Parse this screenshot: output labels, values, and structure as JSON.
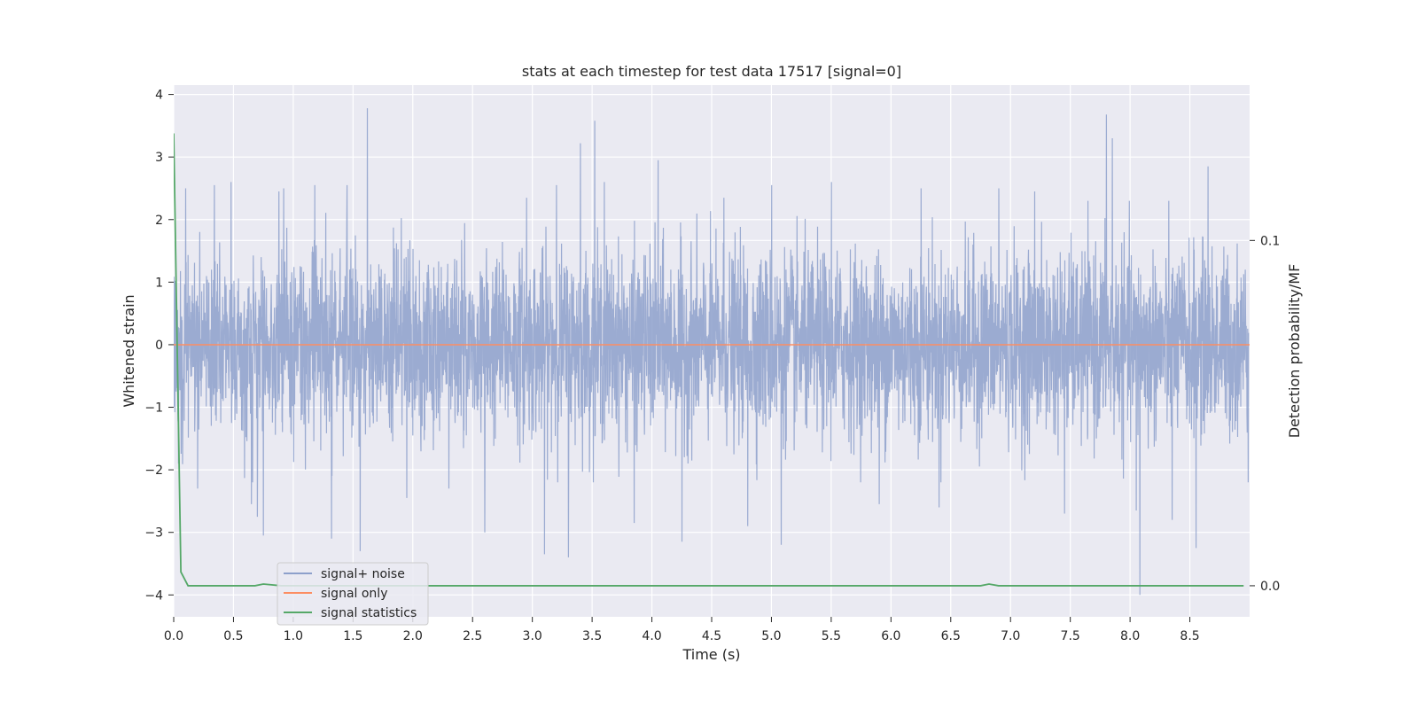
{
  "chart_data": {
    "type": "line",
    "title": "stats at each timestep for test data 17517 [signal=0]",
    "xlabel": "Time (s)",
    "ylabel": "Whitened strain",
    "ylabel_right": "Detection probability/MF",
    "xlim": [
      0.0,
      9.0
    ],
    "ylim": [
      -4.35,
      4.15
    ],
    "ylim_right": [
      -0.009,
      0.145
    ],
    "x_ticks": [
      "0.0",
      "0.5",
      "1.0",
      "1.5",
      "2.0",
      "2.5",
      "3.0",
      "3.5",
      "4.0",
      "4.5",
      "5.0",
      "5.5",
      "6.0",
      "6.5",
      "7.0",
      "7.5",
      "8.0",
      "8.5"
    ],
    "x_tick_values": [
      0.0,
      0.5,
      1.0,
      1.5,
      2.0,
      2.5,
      3.0,
      3.5,
      4.0,
      4.5,
      5.0,
      5.5,
      6.0,
      6.5,
      7.0,
      7.5,
      8.0,
      8.5
    ],
    "y_ticks": [
      "−4",
      "−3",
      "−2",
      "−1",
      "0",
      "1",
      "2",
      "3",
      "4"
    ],
    "y_tick_values": [
      -4,
      -3,
      -2,
      -1,
      0,
      1,
      2,
      3,
      4
    ],
    "y_ticks_right": [
      "0.0",
      "0.1"
    ],
    "y_tick_values_right": [
      0.0,
      0.1
    ],
    "grid": true,
    "legend_position": "lower-left",
    "series": [
      {
        "name": "signal+ noise",
        "color": "#8da0cb",
        "axis": "left",
        "sampling_interval": 0.002,
        "extrema": [
          {
            "x": 0.04,
            "y": -1.9
          },
          {
            "x": 0.1,
            "y": 2.5
          },
          {
            "x": 0.2,
            "y": -2.3
          },
          {
            "x": 0.34,
            "y": 2.55
          },
          {
            "x": 0.48,
            "y": 2.6
          },
          {
            "x": 0.65,
            "y": -2.55
          },
          {
            "x": 0.7,
            "y": -2.75
          },
          {
            "x": 0.75,
            "y": -3.05
          },
          {
            "x": 0.88,
            "y": 2.45
          },
          {
            "x": 0.92,
            "y": 2.5
          },
          {
            "x": 1.18,
            "y": 2.55
          },
          {
            "x": 1.32,
            "y": -3.1
          },
          {
            "x": 1.45,
            "y": 2.55
          },
          {
            "x": 1.56,
            "y": -3.3
          },
          {
            "x": 1.62,
            "y": 3.78
          },
          {
            "x": 1.95,
            "y": -2.45
          },
          {
            "x": 2.3,
            "y": -2.3
          },
          {
            "x": 2.6,
            "y": -3.0
          },
          {
            "x": 2.95,
            "y": 2.35
          },
          {
            "x": 3.1,
            "y": -3.35
          },
          {
            "x": 3.2,
            "y": 2.55
          },
          {
            "x": 3.3,
            "y": -3.4
          },
          {
            "x": 3.4,
            "y": 3.22
          },
          {
            "x": 3.52,
            "y": 3.58
          },
          {
            "x": 3.6,
            "y": 2.6
          },
          {
            "x": 3.85,
            "y": -2.85
          },
          {
            "x": 4.05,
            "y": 2.95
          },
          {
            "x": 4.25,
            "y": -3.15
          },
          {
            "x": 4.6,
            "y": 2.35
          },
          {
            "x": 4.8,
            "y": -2.9
          },
          {
            "x": 5.0,
            "y": 2.55
          },
          {
            "x": 5.08,
            "y": -3.2
          },
          {
            "x": 5.5,
            "y": 2.6
          },
          {
            "x": 5.9,
            "y": -2.55
          },
          {
            "x": 6.25,
            "y": 2.5
          },
          {
            "x": 6.4,
            "y": -2.6
          },
          {
            "x": 6.9,
            "y": 2.5
          },
          {
            "x": 7.2,
            "y": 2.45
          },
          {
            "x": 7.45,
            "y": -2.7
          },
          {
            "x": 7.8,
            "y": 3.68
          },
          {
            "x": 7.85,
            "y": 3.3
          },
          {
            "x": 8.05,
            "y": -2.65
          },
          {
            "x": 8.08,
            "y": -4.0
          },
          {
            "x": 8.35,
            "y": -2.8
          },
          {
            "x": 8.55,
            "y": -3.25
          },
          {
            "x": 8.65,
            "y": 2.85
          }
        ]
      },
      {
        "name": "signal only",
        "color": "#fc8d62",
        "axis": "left",
        "x": [
          0.0,
          9.0
        ],
        "y": [
          0.0,
          0.0
        ]
      },
      {
        "name": "signal statistics",
        "color": "#55a868",
        "axis": "right",
        "x": [
          0.0,
          0.06,
          0.12,
          0.68,
          0.75,
          0.9,
          6.75,
          6.82,
          6.9,
          8.95
        ],
        "y": [
          0.131,
          0.004,
          0.0,
          0.0,
          0.0005,
          0.0,
          0.0,
          0.0005,
          0.0,
          0.0
        ]
      }
    ]
  }
}
